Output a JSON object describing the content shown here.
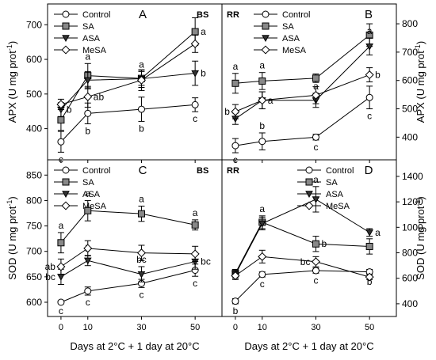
{
  "chart_data": [
    {
      "panel": "A",
      "corner_label": "BS",
      "type": "line",
      "ylabel": "APX (U mg prot",
      "ylabel_sup": "-1",
      "ylabel_end": ")",
      "ylim": [
        310,
        760
      ],
      "yticks": [
        400,
        500,
        600,
        700
      ],
      "x": [
        0,
        10,
        30,
        50
      ],
      "xticks": [
        0,
        10,
        30,
        50
      ],
      "xlim": [
        -5,
        60
      ],
      "legend": "top-left",
      "series": [
        {
          "name": "Control",
          "marker": "circle",
          "values": [
            362,
            444,
            456,
            469
          ],
          "errors": [
            30,
            30,
            35,
            20
          ],
          "letters": [
            "c",
            "b",
            "b",
            "c"
          ],
          "letter_pos": [
            "below",
            "below",
            "below",
            "below"
          ]
        },
        {
          "name": "SA",
          "marker": "square",
          "values": [
            425,
            553,
            545,
            680
          ],
          "errors": [
            30,
            35,
            20,
            40
          ],
          "letters": [
            "",
            "a",
            "a",
            "a"
          ],
          "letter_pos": [
            "",
            "above",
            "above",
            "right"
          ]
        },
        {
          "name": "ASA",
          "marker": "triangle",
          "values": [
            455,
            540,
            544,
            560
          ],
          "errors": [
            20,
            25,
            25,
            35
          ],
          "letters": [
            "b",
            "",
            "",
            "b"
          ],
          "letter_pos": [
            "right",
            "",
            "",
            "right"
          ]
        },
        {
          "name": "MeSA",
          "marker": "diamond",
          "values": [
            470,
            492,
            540,
            645
          ],
          "errors": [
            15,
            30,
            30,
            25
          ],
          "letters": [
            "",
            "ab",
            "",
            ""
          ],
          "letter_pos": [
            "",
            "right",
            "",
            ""
          ]
        }
      ]
    },
    {
      "panel": "B",
      "corner_label": "RR",
      "type": "line",
      "ylabel": "APX (U mg prot",
      "ylabel_sup": "-1",
      "ylabel_end": ")",
      "ylim": [
        320,
        870
      ],
      "yticks": [
        400,
        500,
        600,
        700,
        800
      ],
      "x": [
        0,
        10,
        30,
        50
      ],
      "xticks": [
        0,
        10,
        30,
        50
      ],
      "xlim": [
        -5,
        60
      ],
      "legend": "top-center",
      "series": [
        {
          "name": "Control",
          "marker": "circle",
          "values": [
            370,
            385,
            400,
            540
          ],
          "errors": [
            25,
            30,
            10,
            40
          ],
          "letters": [
            "c",
            "b",
            "c",
            "c"
          ],
          "letter_pos": [
            "below",
            "above",
            "below",
            "below"
          ]
        },
        {
          "name": "SA",
          "marker": "square",
          "values": [
            590,
            598,
            608,
            760
          ],
          "errors": [
            35,
            30,
            15,
            40
          ],
          "letters": [
            "a",
            "a",
            "",
            ""
          ],
          "letter_pos": [
            "above",
            "above",
            "",
            ""
          ]
        },
        {
          "name": "ASA",
          "marker": "triangle",
          "values": [
            465,
            530,
            530,
            720
          ],
          "errors": [
            20,
            30,
            25,
            30
          ],
          "letters": [
            "",
            "",
            "a",
            "a"
          ],
          "letter_pos": [
            "",
            "",
            "above",
            "above"
          ]
        },
        {
          "name": "MeSA",
          "marker": "diamond",
          "values": [
            490,
            530,
            548,
            620
          ],
          "errors": [
            25,
            30,
            30,
            25
          ],
          "letters": [
            "b",
            "a",
            "",
            "b"
          ],
          "letter_pos": [
            "left",
            "right",
            "",
            "right"
          ]
        }
      ]
    },
    {
      "panel": "C",
      "corner_label": "BS",
      "type": "line",
      "ylabel": "SOD (U mg prot",
      "ylabel_sup": "-1",
      "ylabel_end": ")",
      "ylim": [
        572,
        880
      ],
      "yticks": [
        600,
        650,
        700,
        750,
        800,
        850
      ],
      "x": [
        0,
        10,
        30,
        50
      ],
      "xticks": [
        0,
        10,
        30,
        50
      ],
      "xlim": [
        -5,
        60
      ],
      "xlabel": "Days at 2°C + 1 day at 20°C",
      "legend": "top-left",
      "series": [
        {
          "name": "Control",
          "marker": "circle",
          "values": [
            600,
            622,
            637,
            663
          ],
          "errors": [
            3,
            8,
            8,
            12
          ],
          "letters": [
            "c",
            "c",
            "c",
            "c"
          ],
          "letter_pos": [
            "below",
            "below",
            "below",
            "below"
          ]
        },
        {
          "name": "SA",
          "marker": "square",
          "values": [
            717,
            780,
            774,
            752
          ],
          "errors": [
            20,
            20,
            15,
            10
          ],
          "letters": [
            "a",
            "a",
            "a",
            "a"
          ],
          "letter_pos": [
            "above",
            "above",
            "above",
            "above"
          ]
        },
        {
          "name": "ASA",
          "marker": "triangle",
          "values": [
            650,
            682,
            655,
            680
          ],
          "errors": [
            15,
            10,
            15,
            15
          ],
          "letters": [
            "bc",
            "b",
            "bc",
            "bc"
          ],
          "letter_pos": [
            "left",
            "above",
            "above",
            "right"
          ]
        },
        {
          "name": "MeSA",
          "marker": "diamond",
          "values": [
            670,
            706,
            697,
            695
          ],
          "errors": [
            15,
            15,
            15,
            15
          ],
          "letters": [
            "ab",
            "",
            "",
            ""
          ],
          "letter_pos": [
            "left",
            "",
            "",
            ""
          ]
        }
      ]
    },
    {
      "panel": "D",
      "corner_label": "RR",
      "type": "line",
      "ylabel": "SOD (U mg prot",
      "ylabel_sup": "-1",
      "ylabel_end": ")",
      "ylim": [
        300,
        1530
      ],
      "yticks": [
        400,
        600,
        800,
        1000,
        1200,
        1400
      ],
      "x": [
        0,
        10,
        30,
        50
      ],
      "xticks": [
        0,
        10,
        30,
        50
      ],
      "xlim": [
        -5,
        60
      ],
      "xlabel": "Days at 2°C + 1 day at 20°C",
      "legend": "top-right",
      "series": [
        {
          "name": "Control",
          "marker": "circle",
          "values": [
            420,
            630,
            660,
            650
          ],
          "errors": [
            20,
            20,
            20,
            20
          ],
          "letters": [
            "b",
            "c",
            "c",
            "b"
          ],
          "letter_pos": [
            "below",
            "below",
            "below",
            "below"
          ]
        },
        {
          "name": "SA",
          "marker": "square",
          "values": [
            640,
            1040,
            870,
            850
          ],
          "errors": [
            30,
            50,
            60,
            60
          ],
          "letters": [
            "",
            "a",
            "b",
            ""
          ],
          "letter_pos": [
            "",
            "above",
            "right",
            ""
          ]
        },
        {
          "name": "ASA",
          "marker": "triangle",
          "values": [
            630,
            1030,
            1220,
            960
          ],
          "errors": [
            30,
            50,
            100,
            30
          ],
          "letters": [
            "",
            "",
            "a",
            "a"
          ],
          "letter_pos": [
            "",
            "",
            "above",
            "right"
          ]
        },
        {
          "name": "MeSA",
          "marker": "diamond",
          "values": [
            620,
            770,
            730,
            610
          ],
          "errors": [
            30,
            50,
            40,
            20
          ],
          "letters": [
            "",
            "",
            "bc",
            ""
          ],
          "letter_pos": [
            "",
            "",
            "left",
            ""
          ]
        }
      ]
    }
  ]
}
